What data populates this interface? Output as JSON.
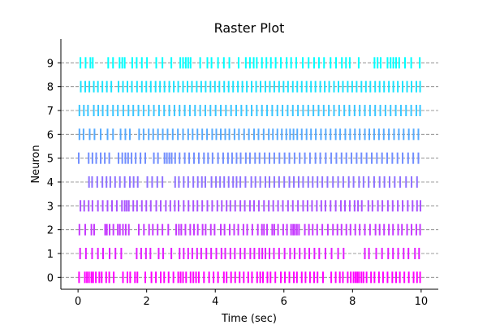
{
  "chart_data": {
    "type": "scatter",
    "subtype": "raster",
    "title": "Raster Plot",
    "xlabel": "Time (sec)",
    "ylabel": "Neuron",
    "xlim": [
      -0.5,
      10.5
    ],
    "ylim": [
      -0.5,
      10.0
    ],
    "xticks": [
      0,
      2,
      4,
      6,
      8,
      10
    ],
    "yticks": [
      0,
      1,
      2,
      3,
      4,
      5,
      6,
      7,
      8,
      9
    ],
    "grid": "horizontal dashed lines at each neuron",
    "legend": "none",
    "colors": {
      "0": "#ff00ff",
      "1": "#e31cff",
      "2": "#c639ff",
      "3": "#aa55ff",
      "4": "#8e71ff",
      "5": "#718eff",
      "6": "#55aaff",
      "7": "#39c6ff",
      "8": "#1ce3ff",
      "9": "#00ffff"
    },
    "spike_rate_per_sec": 20,
    "spike_duration_sec": 10,
    "series": [
      {
        "neuron": 0,
        "color": "#ff00ff",
        "spike_times": [
          0.03,
          0.2,
          0.26,
          0.32,
          0.39,
          0.44,
          0.52,
          0.62,
          0.69,
          0.82,
          0.91,
          1.04,
          1.31,
          1.44,
          1.52,
          1.66,
          1.73,
          1.96,
          2.14,
          2.27,
          2.41,
          2.51,
          2.64,
          2.78,
          2.92,
          2.99,
          3.06,
          3.15,
          3.28,
          3.36,
          3.44,
          3.52,
          3.67,
          3.82,
          3.95,
          4.08,
          4.25,
          4.33,
          4.46,
          4.58,
          4.71,
          4.83,
          4.96,
          5.07,
          5.22,
          5.31,
          5.39,
          5.52,
          5.61,
          5.75,
          5.91,
          6.03,
          6.16,
          6.29,
          6.38,
          6.52,
          6.63,
          6.76,
          6.88,
          6.98,
          7.14,
          7.38,
          7.51,
          7.63,
          7.72,
          7.86,
          7.95,
          8.03,
          8.09,
          8.14,
          8.19,
          8.26,
          8.32,
          8.41,
          8.54,
          8.64,
          8.77,
          8.89,
          9.02,
          9.16,
          9.27,
          9.38,
          9.51,
          9.64,
          9.78,
          9.88,
          9.97
        ]
      },
      {
        "neuron": 1,
        "color": "#e31cff",
        "spike_times": [
          0.06,
          0.23,
          0.41,
          0.58,
          0.73,
          0.92,
          1.09,
          1.26,
          1.71,
          1.84,
          1.98,
          2.11,
          2.35,
          2.48,
          2.72,
          2.96,
          3.08,
          3.21,
          3.33,
          3.47,
          3.59,
          3.74,
          3.88,
          4.03,
          4.18,
          4.29,
          4.44,
          4.57,
          4.73,
          4.86,
          5.02,
          5.14,
          5.28,
          5.37,
          5.46,
          5.58,
          5.71,
          5.86,
          6.02,
          6.18,
          6.31,
          6.46,
          6.61,
          6.74,
          6.89,
          7.03,
          7.21,
          7.39,
          7.58,
          7.74,
          8.36,
          8.48,
          8.69,
          8.86,
          9.04,
          9.18,
          9.33,
          9.49,
          9.63,
          9.82,
          9.94
        ]
      },
      {
        "neuron": 2,
        "color": "#c639ff",
        "spike_times": [
          0.04,
          0.21,
          0.39,
          0.47,
          0.79,
          0.84,
          0.92,
          1.03,
          1.16,
          1.22,
          1.31,
          1.39,
          1.48,
          1.77,
          1.92,
          2.07,
          2.18,
          2.32,
          2.46,
          2.63,
          2.86,
          2.94,
          3.01,
          3.13,
          3.27,
          3.38,
          3.49,
          3.63,
          3.72,
          3.87,
          3.98,
          4.16,
          4.27,
          4.42,
          4.55,
          4.67,
          4.82,
          4.93,
          5.08,
          5.24,
          5.36,
          5.42,
          5.51,
          5.66,
          5.72,
          5.83,
          5.98,
          6.09,
          6.21,
          6.27,
          6.32,
          6.38,
          6.44,
          6.61,
          6.73,
          6.84,
          6.97,
          7.12,
          7.28,
          7.43,
          7.56,
          7.68,
          7.82,
          7.94,
          8.08,
          8.21,
          8.36,
          8.51,
          8.67,
          8.79,
          8.92,
          9.06,
          9.18,
          9.33,
          9.44,
          9.59,
          9.72,
          9.86,
          9.97
        ]
      },
      {
        "neuron": 3,
        "color": "#aa55ff",
        "spike_times": [
          0.07,
          0.18,
          0.31,
          0.42,
          0.58,
          0.72,
          0.86,
          0.99,
          1.13,
          1.28,
          1.36,
          1.42,
          1.48,
          1.61,
          1.72,
          1.86,
          1.99,
          2.12,
          2.28,
          2.41,
          2.56,
          2.69,
          2.82,
          2.93,
          3.08,
          3.22,
          3.36,
          3.48,
          3.62,
          3.77,
          3.91,
          4.06,
          4.19,
          4.33,
          4.44,
          4.58,
          4.73,
          4.86,
          5.01,
          5.13,
          5.27,
          5.42,
          5.56,
          5.69,
          5.83,
          5.97,
          6.12,
          6.26,
          6.41,
          6.56,
          6.69,
          6.82,
          6.96,
          7.09,
          7.21,
          7.36,
          7.51,
          7.66,
          7.78,
          7.92,
          8.06,
          8.16,
          8.27,
          8.46,
          8.58,
          8.74,
          8.87,
          9.03,
          9.17,
          9.32,
          9.46,
          9.61,
          9.75,
          9.88,
          9.98
        ]
      },
      {
        "neuron": 4,
        "color": "#8e71ff",
        "spike_times": [
          0.32,
          0.41,
          0.56,
          0.71,
          0.83,
          0.94,
          1.08,
          1.22,
          1.36,
          1.51,
          1.62,
          1.74,
          2.02,
          2.16,
          2.31,
          2.46,
          2.83,
          2.94,
          3.08,
          3.21,
          3.36,
          3.49,
          3.61,
          3.71,
          3.89,
          4.02,
          4.14,
          4.26,
          4.39,
          4.52,
          4.62,
          4.73,
          4.88,
          5.05,
          5.17,
          5.31,
          5.46,
          5.58,
          5.72,
          5.86,
          6.01,
          6.16,
          6.29,
          6.43,
          6.56,
          6.71,
          6.84,
          6.98,
          7.12,
          7.27,
          7.43,
          7.58,
          7.73,
          7.89,
          8.03,
          8.19,
          8.32,
          8.47,
          8.63,
          8.79,
          8.93,
          9.08,
          9.23,
          9.39,
          9.56,
          9.72,
          9.88
        ]
      },
      {
        "neuron": 5,
        "color": "#718eff",
        "spike_times": [
          0.02,
          0.31,
          0.42,
          0.53,
          0.66,
          0.78,
          0.91,
          1.18,
          1.29,
          1.38,
          1.46,
          1.56,
          1.68,
          1.82,
          1.96,
          2.21,
          2.33,
          2.52,
          2.59,
          2.66,
          2.73,
          2.83,
          2.96,
          3.11,
          3.24,
          3.38,
          3.52,
          3.67,
          3.79,
          3.92,
          4.08,
          4.23,
          4.37,
          4.49,
          4.62,
          4.74,
          4.89,
          5.01,
          5.16,
          5.29,
          5.44,
          5.58,
          5.72,
          5.87,
          6.02,
          6.16,
          6.31,
          6.46,
          6.61,
          6.76,
          6.92,
          7.06,
          7.22,
          7.38,
          7.53,
          7.68,
          7.82,
          7.97,
          8.12,
          8.26,
          8.41,
          8.56,
          8.71,
          8.86,
          9.01,
          9.16,
          9.31,
          9.46,
          9.62,
          9.77,
          9.92
        ]
      },
      {
        "neuron": 6,
        "color": "#55aaff",
        "spike_times": [
          0.04,
          0.16,
          0.34,
          0.48,
          0.66,
          0.86,
          1.02,
          1.24,
          1.38,
          1.51,
          1.78,
          1.91,
          2.06,
          2.19,
          2.33,
          2.47,
          2.61,
          2.76,
          2.91,
          3.06,
          3.21,
          3.34,
          3.48,
          3.62,
          3.76,
          3.91,
          4.03,
          4.16,
          4.29,
          4.41,
          4.56,
          4.69,
          4.84,
          4.98,
          5.13,
          5.26,
          5.41,
          5.56,
          5.68,
          5.81,
          5.94,
          6.07,
          6.18,
          6.28,
          6.39,
          6.52,
          6.66,
          6.79,
          6.93,
          7.08,
          7.22,
          7.36,
          7.51,
          7.64,
          7.79,
          7.93,
          8.07,
          8.21,
          8.36,
          8.49,
          8.63,
          8.77,
          8.91,
          9.06,
          9.21,
          9.35,
          9.49,
          9.64,
          9.78,
          9.92
        ]
      },
      {
        "neuron": 7,
        "color": "#39c6ff",
        "spike_times": [
          0.04,
          0.17,
          0.29,
          0.46,
          0.59,
          0.72,
          0.86,
          1.02,
          1.16,
          1.32,
          1.47,
          1.61,
          1.76,
          1.91,
          2.06,
          2.21,
          2.36,
          2.51,
          2.66,
          2.81,
          2.96,
          3.11,
          3.26,
          3.41,
          3.56,
          3.71,
          3.86,
          4.01,
          4.16,
          4.31,
          4.46,
          4.61,
          4.76,
          4.91,
          5.06,
          5.21,
          5.36,
          5.51,
          5.66,
          5.81,
          5.96,
          6.11,
          6.26,
          6.41,
          6.56,
          6.71,
          6.86,
          7.01,
          7.16,
          7.31,
          7.46,
          7.61,
          7.76,
          7.91,
          8.06,
          8.21,
          8.36,
          8.51,
          8.66,
          8.81,
          8.96,
          9.11,
          9.26,
          9.41,
          9.56,
          9.71,
          9.86,
          9.97
        ]
      },
      {
        "neuron": 8,
        "color": "#1ce3ff",
        "spike_times": [
          0.08,
          0.21,
          0.33,
          0.46,
          0.58,
          0.71,
          0.84,
          0.97,
          1.18,
          1.31,
          1.44,
          1.57,
          1.72,
          1.86,
          1.99,
          2.12,
          2.26,
          2.39,
          2.52,
          2.66,
          2.79,
          2.92,
          3.06,
          3.19,
          3.32,
          3.46,
          3.59,
          3.72,
          3.86,
          3.99,
          4.12,
          4.26,
          4.39,
          4.52,
          4.66,
          4.79,
          4.92,
          5.06,
          5.19,
          5.32,
          5.46,
          5.59,
          5.72,
          5.86,
          5.99,
          6.12,
          6.26,
          6.39,
          6.52,
          6.66,
          6.79,
          6.92,
          7.06,
          7.19,
          7.32,
          7.46,
          7.59,
          7.72,
          7.86,
          7.99,
          8.12,
          8.26,
          8.39,
          8.52,
          8.66,
          8.79,
          8.92,
          9.06,
          9.19,
          9.32,
          9.46,
          9.59,
          9.72,
          9.86,
          9.97
        ]
      },
      {
        "neuron": 9,
        "color": "#00ffff",
        "spike_times": [
          0.07,
          0.22,
          0.36,
          0.43,
          0.88,
          1.02,
          1.21,
          1.29,
          1.36,
          1.58,
          1.71,
          1.86,
          2.01,
          2.28,
          2.46,
          2.72,
          2.98,
          3.06,
          3.14,
          3.21,
          3.28,
          3.56,
          3.77,
          3.89,
          4.08,
          4.25,
          4.41,
          4.68,
          4.89,
          5.01,
          5.12,
          5.21,
          5.36,
          5.49,
          5.62,
          5.76,
          5.91,
          6.08,
          6.21,
          6.36,
          6.55,
          6.72,
          6.88,
          7.02,
          7.17,
          7.36,
          7.52,
          7.69,
          7.81,
          7.92,
          8.18,
          8.64,
          8.73,
          8.82,
          9.02,
          9.11,
          9.19,
          9.27,
          9.36,
          9.53,
          9.71,
          9.96
        ]
      }
    ]
  }
}
